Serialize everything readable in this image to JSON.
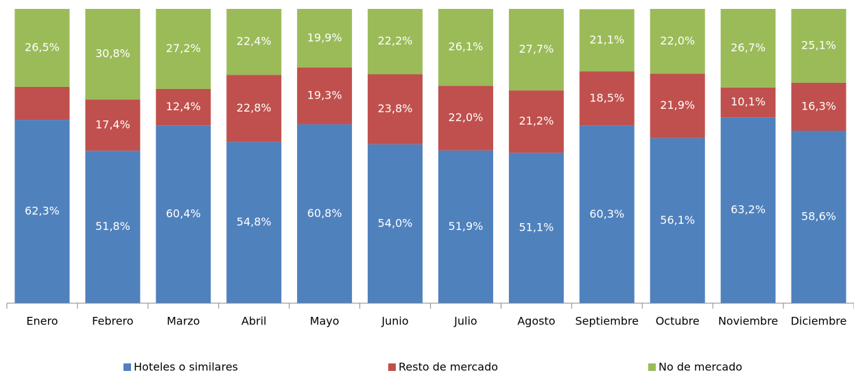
{
  "chart_data": {
    "type": "stacked_bar",
    "categories": [
      "Enero",
      "Febrero",
      "Marzo",
      "Abril",
      "Mayo",
      "Junio",
      "Julio",
      "Agosto",
      "Septiembre",
      "Octubre",
      "Noviembre",
      "Diciembre"
    ],
    "series": [
      {
        "name": "Hoteles o similares",
        "color": "#4f81bd",
        "values": [
          62.3,
          51.8,
          60.4,
          54.8,
          60.8,
          54.0,
          51.9,
          51.1,
          60.3,
          56.1,
          63.2,
          58.6
        ],
        "value_labels": [
          "62,3%",
          "51,8%",
          "60,4%",
          "54,8%",
          "60,8%",
          "54,0%",
          "51,9%",
          "51,1%",
          "60,3%",
          "56,1%",
          "63,2%",
          "58,6%"
        ]
      },
      {
        "name": "Resto de mercado",
        "color": "#c0504d",
        "values": [
          11.2,
          17.4,
          12.4,
          22.8,
          19.3,
          23.8,
          22.0,
          21.2,
          18.5,
          21.9,
          10.1,
          16.3
        ],
        "value_labels": [
          null,
          "17,4%",
          "12,4%",
          "22,8%",
          "19,3%",
          "23,8%",
          "22,0%",
          "21,2%",
          "18,5%",
          "21,9%",
          "10,1%",
          "16,3%"
        ]
      },
      {
        "name": "No de mercado",
        "color": "#9bbb59",
        "values": [
          26.5,
          30.8,
          27.2,
          22.4,
          19.9,
          22.2,
          26.1,
          27.7,
          21.1,
          22.0,
          26.7,
          25.1
        ],
        "value_labels": [
          "26,5%",
          "30,8%",
          "27,2%",
          "22,4%",
          "19,9%",
          "22,2%",
          "26,1%",
          "27,7%",
          "21,1%",
          "22,0%",
          "26,7%",
          "25,1%"
        ]
      }
    ],
    "ylim": [
      0,
      100
    ],
    "legend": "bottom"
  }
}
